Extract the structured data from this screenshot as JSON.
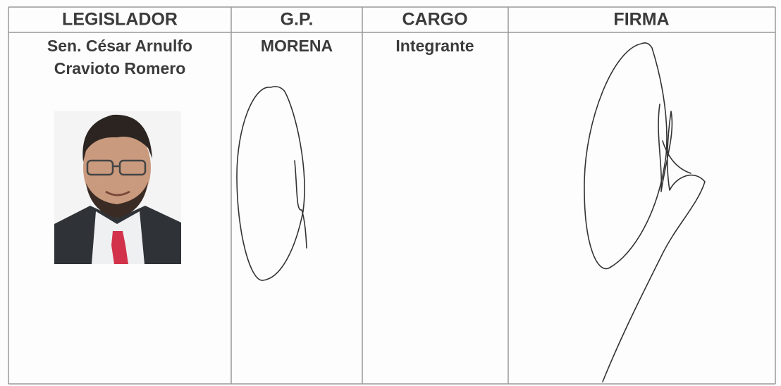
{
  "table": {
    "headers": [
      "LEGISLADOR",
      "G.P.",
      "CARGO",
      "FIRMA"
    ],
    "rows": [
      {
        "legislador": [
          "Sen. César Arnulfo",
          "Cravioto Romero"
        ],
        "gp": "MORENA",
        "cargo": "Integrante"
      }
    ]
  }
}
